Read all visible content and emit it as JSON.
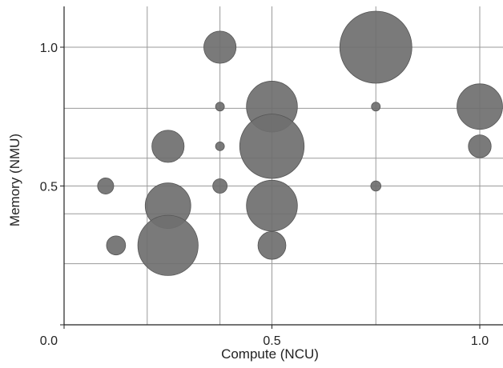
{
  "chart_data": {
    "type": "scatter",
    "xlabel": "Compute (NCU)",
    "ylabel": "Memory (NMU)",
    "xlim": [
      0.0,
      1.05
    ],
    "ylim": [
      0.0,
      1.15
    ],
    "x_ticks": [
      0.5,
      1.0
    ],
    "x_tick_labels": [
      "0.5",
      "1.0"
    ],
    "y_ticks": [
      0.5,
      1.0
    ],
    "y_tick_labels": [
      "0.5",
      "1.0"
    ],
    "origin_label": "0.0",
    "grid": true,
    "x_gridlines": [
      0.2,
      0.375,
      0.5,
      0.75,
      1.0
    ],
    "y_gridlines": [
      0.4,
      0.5,
      0.6,
      0.78,
      1.0,
      0.22
    ],
    "marker_color": "#6f6f6f",
    "marker_edge_color": "#555555",
    "points": [
      {
        "x": 0.375,
        "y": 1.0,
        "size": 0.2
      },
      {
        "x": 0.75,
        "y": 1.0,
        "size": 1.0
      },
      {
        "x": 0.5,
        "y": 0.786,
        "size": 0.5
      },
      {
        "x": 1.0,
        "y": 0.786,
        "size": 0.4
      },
      {
        "x": 0.25,
        "y": 0.643,
        "size": 0.2
      },
      {
        "x": 0.5,
        "y": 0.643,
        "size": 0.8
      },
      {
        "x": 1.0,
        "y": 0.643,
        "size": 0.1
      },
      {
        "x": 0.1,
        "y": 0.5,
        "size": 0.05
      },
      {
        "x": 0.375,
        "y": 0.5,
        "size": 0.04
      },
      {
        "x": 0.75,
        "y": 0.5,
        "size": 0.02
      },
      {
        "x": 0.25,
        "y": 0.429,
        "size": 0.4
      },
      {
        "x": 0.5,
        "y": 0.429,
        "size": 0.5
      },
      {
        "x": 0.125,
        "y": 0.286,
        "size": 0.07
      },
      {
        "x": 0.25,
        "y": 0.286,
        "size": 0.7
      },
      {
        "x": 0.5,
        "y": 0.286,
        "size": 0.15
      },
      {
        "x": 0.375,
        "y": 0.786,
        "size": 0.015
      },
      {
        "x": 0.375,
        "y": 0.643,
        "size": 0.015
      },
      {
        "x": 0.75,
        "y": 0.786,
        "size": 0.015
      }
    ]
  }
}
